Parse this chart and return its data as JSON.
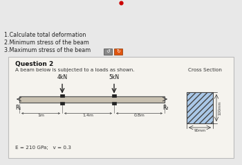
{
  "bg_color": "#e8e8e8",
  "panel_color": "#f5f3ee",
  "title_items": [
    "1.Calculate total deformation",
    "2.Minimum stress of the beam",
    "3.Maximum stress of the beam"
  ],
  "question_title": "Question 2",
  "question_desc": "A beam below is subjected to a loads as shown.",
  "load1_label": "4kN",
  "load2_label": "5kN",
  "r1_label": "R₁",
  "r2_label": "R₂",
  "dist1": "1m",
  "dist2": "1.4m",
  "dist3": "0.8m",
  "material_text": "E = 210 GPa;   v = 0.3",
  "cross_section_label": "Cross Section",
  "cs_width_label": "90mm",
  "cs_height_label": "100mm",
  "button1_color": "#888888",
  "button2_color": "#e05510",
  "red_dot_color": "#cc0000",
  "beam_color": "#c8c0b0",
  "beam_outline": "#555555",
  "cs_fill": "#aac8e8"
}
